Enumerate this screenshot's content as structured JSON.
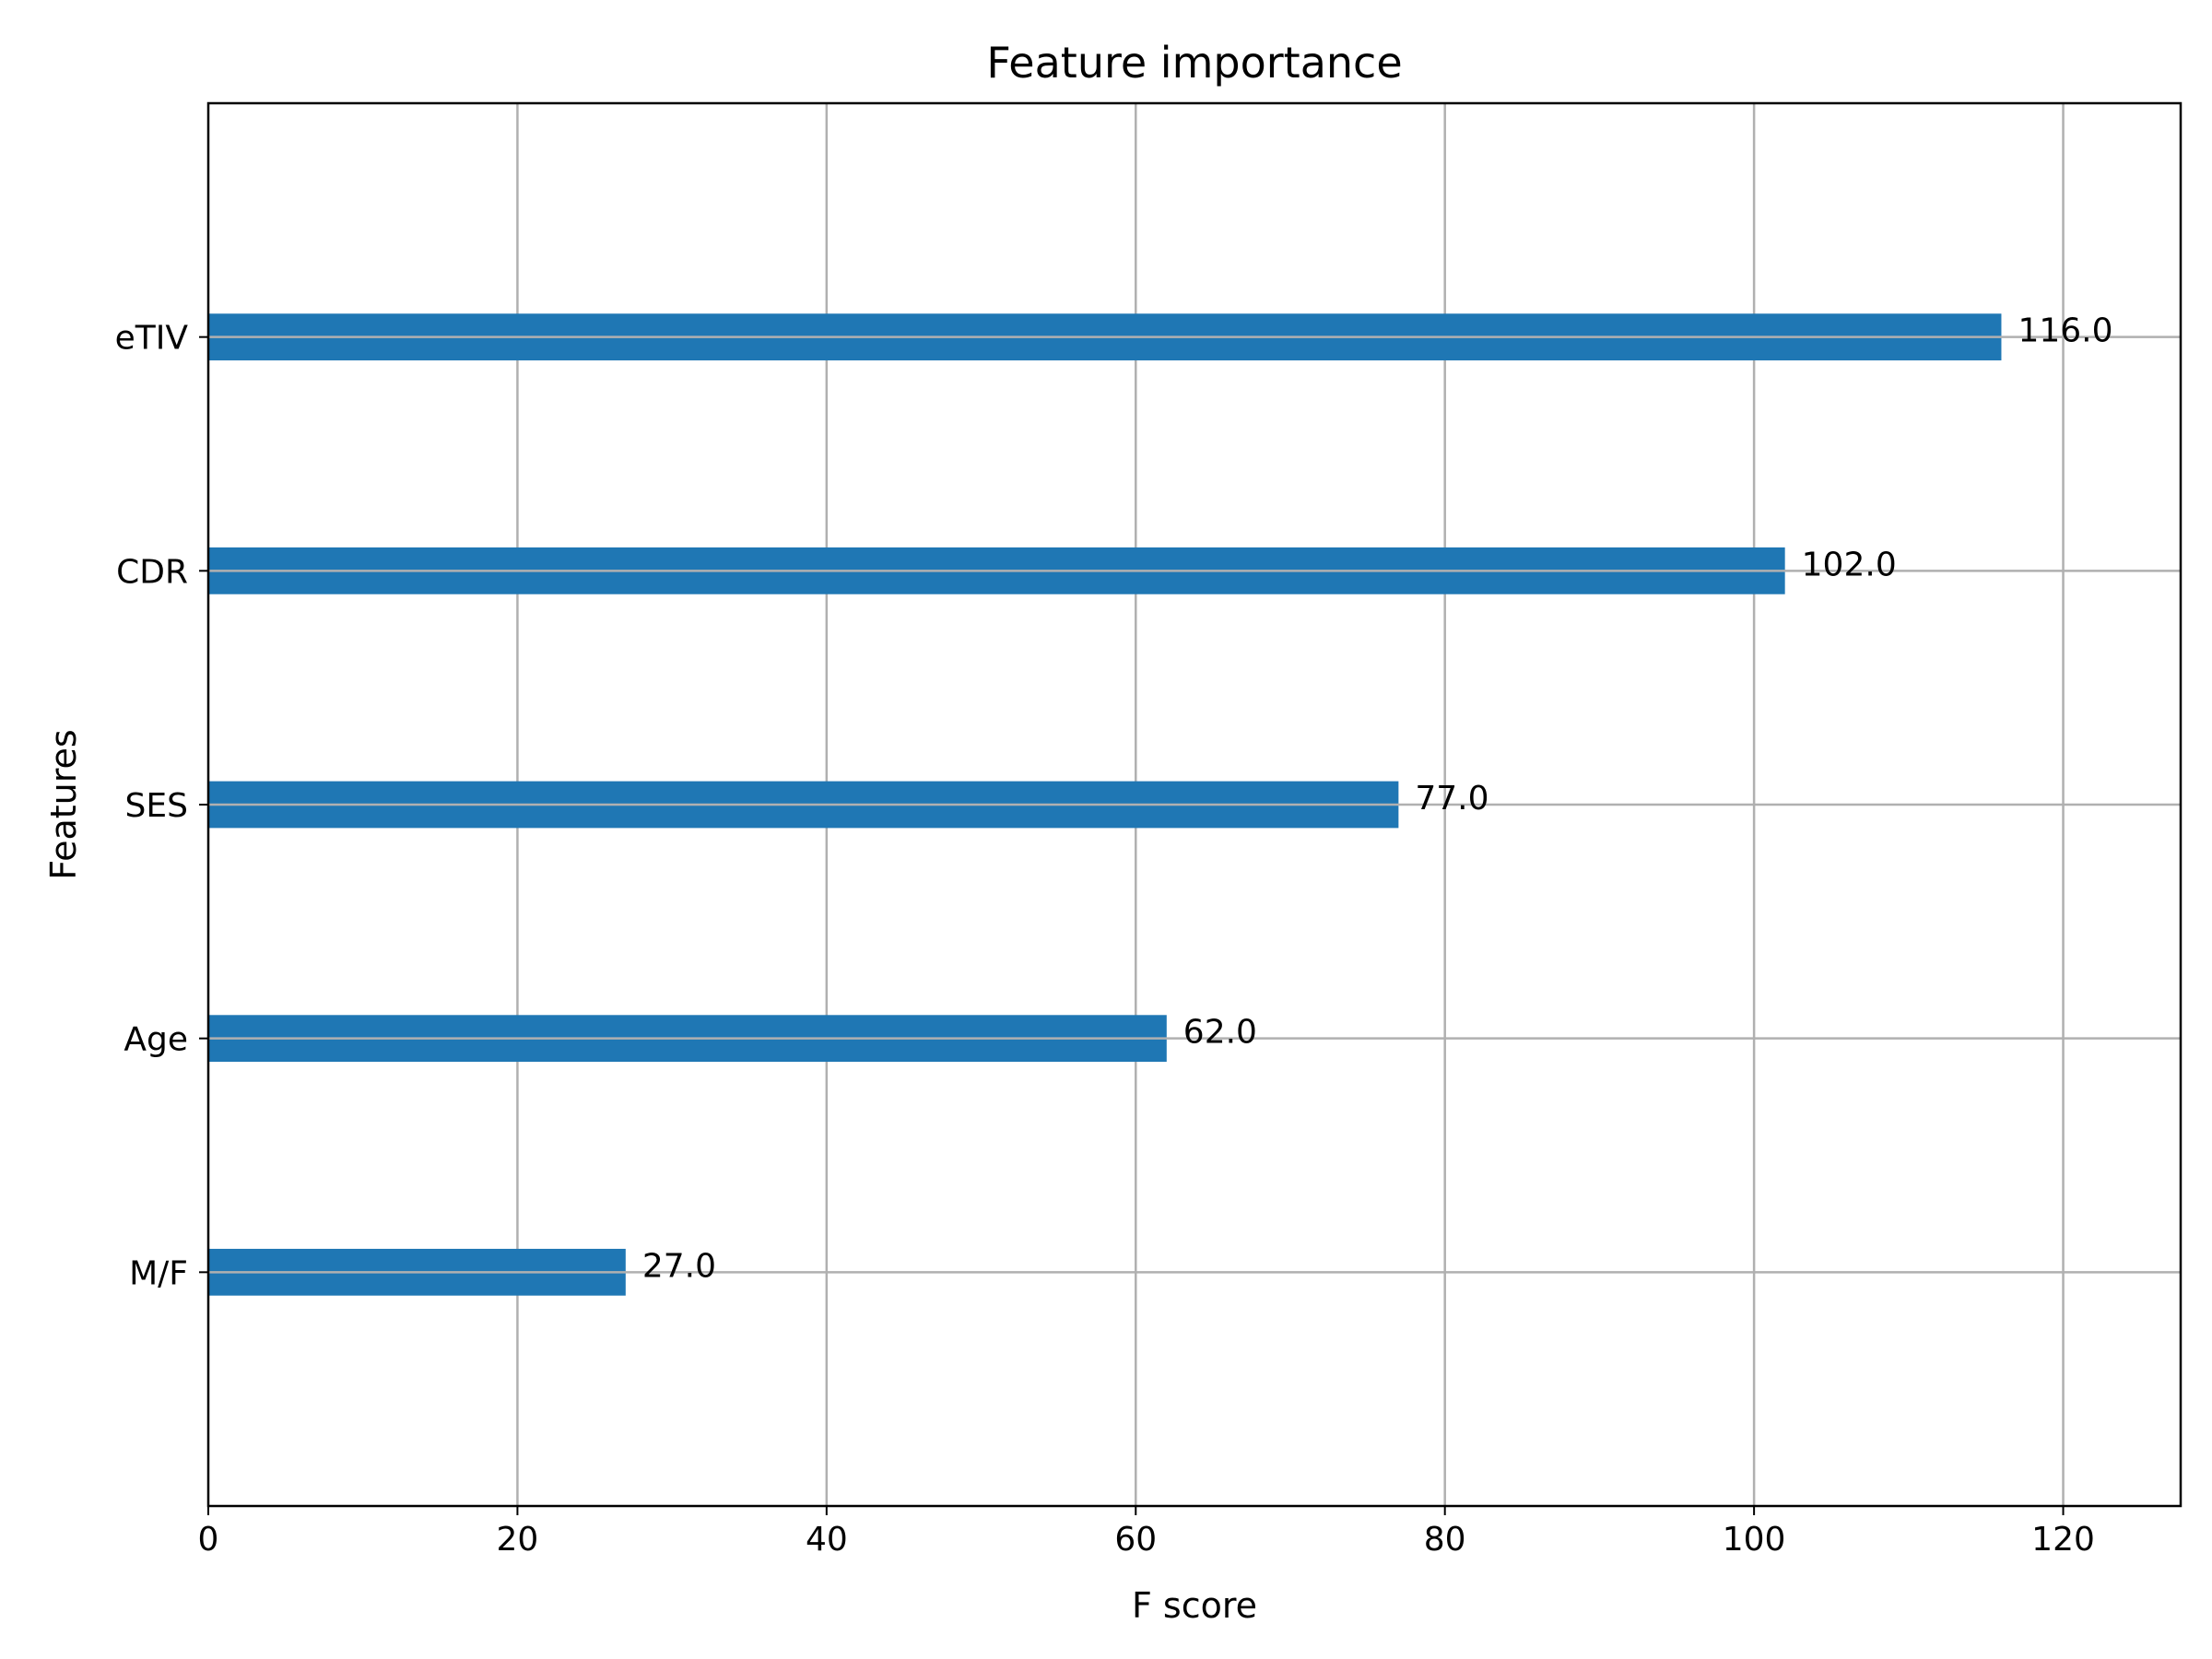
{
  "chart_data": {
    "type": "bar",
    "orientation": "horizontal",
    "title": "Feature importance",
    "xlabel": "F score",
    "ylabel": "Features",
    "categories": [
      "M/F",
      "Age",
      "SES",
      "CDR",
      "eTIV"
    ],
    "values": [
      27.0,
      62.0,
      77.0,
      102.0,
      116.0
    ],
    "data_labels": [
      "27.0",
      "62.0",
      "77.0",
      "102.0",
      "116.0"
    ],
    "xlim": [
      0,
      127.6
    ],
    "xticks": [
      0,
      20,
      40,
      60,
      80,
      100,
      120
    ],
    "xtick_labels": [
      "0",
      "20",
      "40",
      "60",
      "80",
      "100",
      "120"
    ],
    "grid": true,
    "bar_color": "#1f77b4",
    "grid_color": "#b0b0b0"
  }
}
